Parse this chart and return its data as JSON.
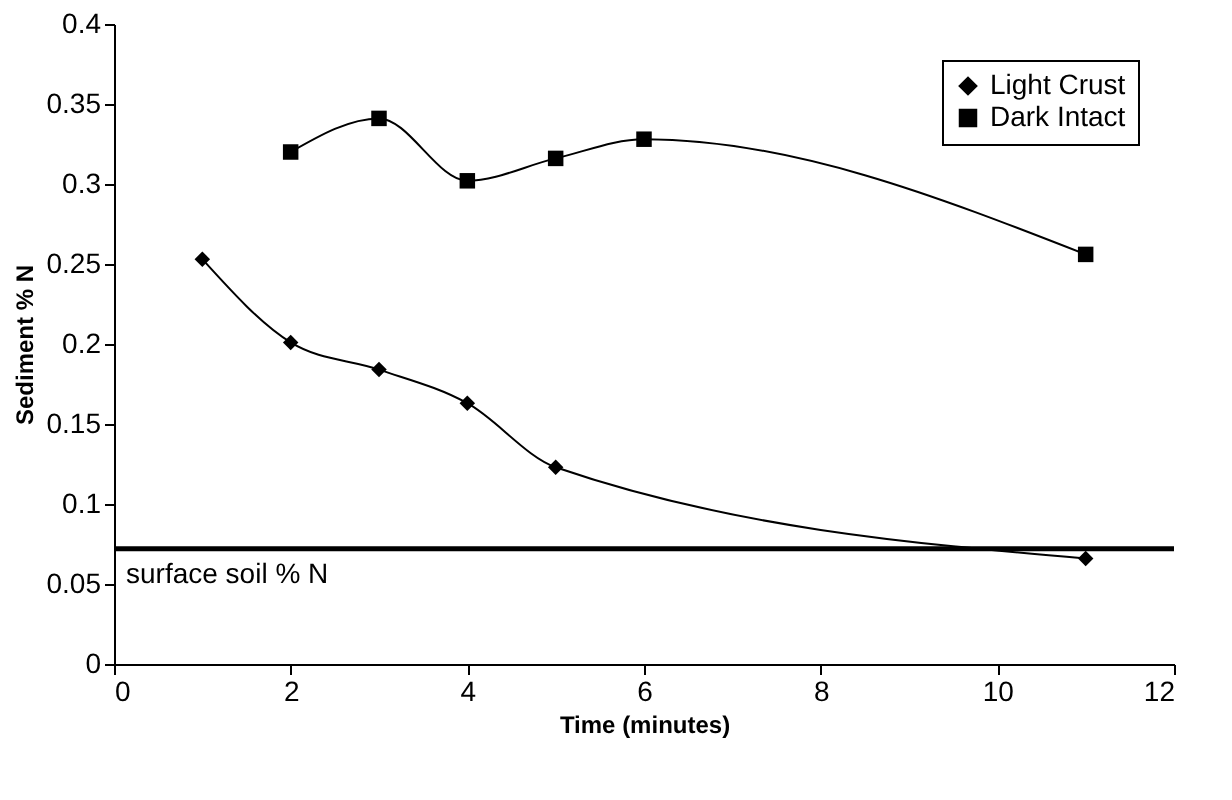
{
  "chart_data": {
    "type": "line",
    "xlabel": "Time (minutes)",
    "ylabel": "Sediment % N",
    "series": [
      {
        "name": "Light Crust",
        "color": "#000000",
        "marker": "diamond",
        "x": [
          1,
          2,
          3,
          4,
          5,
          11
        ],
        "values": [
          0.253,
          0.201,
          0.184,
          0.163,
          0.123,
          0.066
        ]
      },
      {
        "name": "Dark Intact",
        "color": "#000000",
        "marker": "square",
        "x": [
          2,
          3,
          4,
          5,
          6,
          11
        ],
        "values": [
          0.32,
          0.341,
          0.302,
          0.316,
          0.328,
          0.256
        ]
      }
    ],
    "xlim": [
      0,
      12
    ],
    "xticks": [
      0,
      2,
      4,
      6,
      8,
      10,
      12
    ],
    "ylim": [
      0,
      0.4
    ],
    "yticks": [
      0,
      0.05,
      0.1,
      0.15,
      0.2,
      0.25,
      0.3,
      0.35,
      0.4
    ],
    "ref_lines": [
      {
        "axis": "y",
        "value": 0.072,
        "label": "surface soil % N",
        "color": "#000000"
      }
    ],
    "grid": false,
    "legend": "top right",
    "line_style": "solid"
  }
}
